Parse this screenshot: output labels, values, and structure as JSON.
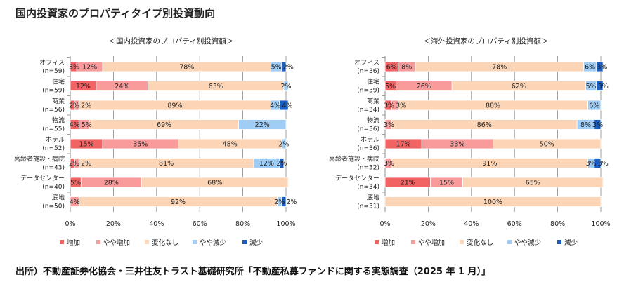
{
  "title": "国内投資家のプロパティタイプ別投資動向",
  "footer": "出所）不動産証券化協会・三井住友トラスト基礎研究所「不動産私募ファンドに関する実態調査（2025 年 1 月）」",
  "colors": {
    "増加": "#f26464",
    "やや増加": "#f99b9b",
    "変化なし": "#fcd5b6",
    "やや減少": "#9fcdf6",
    "減少": "#1a5fc4"
  },
  "chart_data": [
    {
      "type": "bar",
      "stacked": true,
      "orientation": "horizontal",
      "title": "＜国内投資家のプロパティ別投資額＞",
      "categories": [
        "オフィス",
        "住宅",
        "商業",
        "物流",
        "ホテル",
        "高齢者施設・病院",
        "データセンター",
        "底地"
      ],
      "n_labels": [
        "(n=59)",
        "(n=59)",
        "(n=56)",
        "(n=55)",
        "(n=52)",
        "(n=43)",
        "(n=40)",
        "(n=50)"
      ],
      "xlim": [
        0,
        100
      ],
      "xticks": [
        "0%",
        "20%",
        "40%",
        "60%",
        "80%",
        "100%"
      ],
      "legend_position": "bottom",
      "series": [
        {
          "name": "増加",
          "values": [
            3,
            12,
            2,
            4,
            15,
            2,
            5,
            0
          ]
        },
        {
          "name": "やや増加",
          "values": [
            12,
            24,
            2,
            5,
            35,
            2,
            28,
            4
          ]
        },
        {
          "name": "変化なし",
          "values": [
            78,
            63,
            89,
            69,
            48,
            81,
            68,
            92
          ]
        },
        {
          "name": "やや減少",
          "values": [
            5,
            2,
            4,
            22,
            2,
            12,
            0,
            2
          ]
        },
        {
          "name": "減少",
          "values": [
            2,
            0,
            4,
            0,
            0,
            2,
            0,
            2
          ]
        }
      ]
    },
    {
      "type": "bar",
      "stacked": true,
      "orientation": "horizontal",
      "title": "＜海外投資家のプロパティ別投資額＞",
      "categories": [
        "オフィス",
        "住宅",
        "商業",
        "物流",
        "ホテル",
        "高齢者施設・病院",
        "データセンター",
        "底地"
      ],
      "n_labels": [
        "(n=36)",
        "(n=39)",
        "(n=34)",
        "(n=36)",
        "(n=36)",
        "(n=32)",
        "(n=34)",
        "(n=31)"
      ],
      "xlim": [
        0,
        100
      ],
      "xticks": [
        "0%",
        "20%",
        "40%",
        "60%",
        "80%",
        "100%"
      ],
      "legend_position": "bottom",
      "series": [
        {
          "name": "増加",
          "values": [
            6,
            5,
            3,
            0,
            17,
            0,
            21,
            0
          ]
        },
        {
          "name": "やや増加",
          "values": [
            8,
            26,
            3,
            3,
            33,
            3,
            15,
            0
          ]
        },
        {
          "name": "変化なし",
          "values": [
            78,
            62,
            88,
            86,
            50,
            91,
            65,
            100
          ]
        },
        {
          "name": "やや減少",
          "values": [
            6,
            5,
            6,
            8,
            0,
            3,
            0,
            0
          ]
        },
        {
          "name": "減少",
          "values": [
            3,
            3,
            0,
            3,
            0,
            3,
            0,
            0
          ]
        }
      ]
    }
  ]
}
